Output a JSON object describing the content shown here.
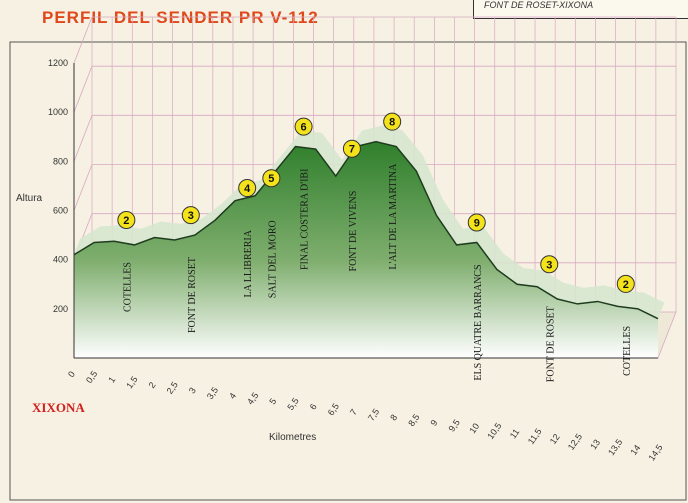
{
  "title": "PERFIL DEL SENDER PR V-112",
  "route": "FONT DE ROSET-XIXONA",
  "town": "XIXONA",
  "colors": {
    "title": "#e0471a",
    "town": "#d21f1f",
    "fill_top": "#2f7f2c",
    "fill_bottom": "#ffffff",
    "grid": "#d9a7c2",
    "marker_fill": "#f4e31a"
  },
  "chart_data": {
    "type": "area",
    "title": "PERFIL DEL SENDER PR V-112",
    "xlabel": "Kilometres",
    "ylabel": "Altura",
    "xlim": [
      0,
      14.5
    ],
    "ylim": [
      0,
      1200
    ],
    "grid": true,
    "yticks": [
      "200",
      "400",
      "600",
      "800",
      "1000",
      "1200"
    ],
    "xticks": [
      "0",
      "0,5",
      "1",
      "1,5",
      "2",
      "2,5",
      "3",
      "3,5",
      "4",
      "4,5",
      "5",
      "5,5",
      "6",
      "6,5",
      "7",
      "7,5",
      "8",
      "8,5",
      "9",
      "9,5",
      "10",
      "10,5",
      "11",
      "11,5",
      "12",
      "12,5",
      "13",
      "13,5",
      "14",
      "14,5"
    ],
    "x": [
      0,
      0.5,
      1.0,
      1.5,
      2.0,
      2.5,
      3.0,
      3.5,
      4.0,
      4.5,
      5.0,
      5.5,
      6.0,
      6.5,
      7.0,
      7.5,
      8.0,
      8.5,
      9.0,
      9.5,
      10.0,
      10.5,
      11.0,
      11.5,
      12.0,
      12.5,
      13.0,
      13.5,
      14.0,
      14.5
    ],
    "values": [
      420,
      470,
      475,
      460,
      490,
      480,
      500,
      560,
      640,
      660,
      760,
      860,
      850,
      740,
      860,
      880,
      860,
      760,
      580,
      460,
      470,
      360,
      300,
      290,
      240,
      220,
      230,
      210,
      200,
      160
    ],
    "labels": [
      {
        "x": 1.3,
        "text": "COTELLES",
        "num": "2",
        "y": 480
      },
      {
        "x": 2.9,
        "text": "FONT DE ROSET",
        "num": "3",
        "y": 500
      },
      {
        "x": 4.3,
        "text": "LA LLIBRERIA",
        "num": "4",
        "y": 610
      },
      {
        "x": 4.9,
        "text": "SALT DEL MORO",
        "num": "5",
        "y": 650
      },
      {
        "x": 5.7,
        "text": "FINAL COSTERA D'IBI",
        "num": "6",
        "y": 860
      },
      {
        "x": 6.9,
        "text": "FONT DE VIVENS",
        "num": "7",
        "y": 770
      },
      {
        "x": 7.9,
        "text": "L'ALT DE LA MARTINA",
        "num": "8",
        "y": 880
      },
      {
        "x": 10.0,
        "text": "ELS QUATRE BARRANCS",
        "num": "9",
        "y": 470
      },
      {
        "x": 11.8,
        "text": "FONT DE ROSET",
        "num": "3",
        "y": 300
      },
      {
        "x": 13.7,
        "text": "COTELLES",
        "num": "2",
        "y": 220
      }
    ]
  }
}
